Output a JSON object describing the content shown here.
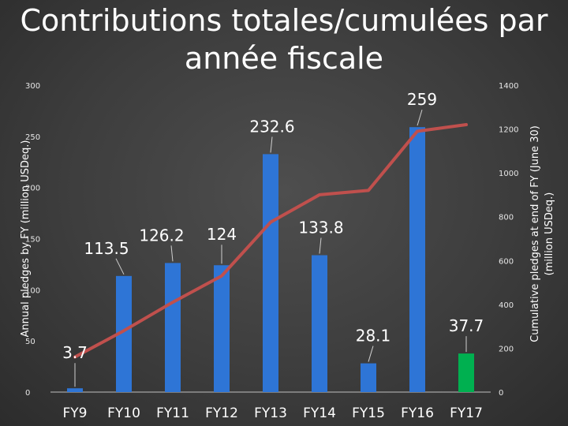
{
  "chart_data": {
    "type": "bar",
    "title": "Contributions totales/cumulées par année fiscale",
    "categories": [
      "FY9",
      "FY10",
      "FY11",
      "FY12",
      "FY13",
      "FY14",
      "FY15",
      "FY16",
      "FY17"
    ],
    "series": [
      {
        "type": "bar",
        "axis": "left",
        "values": [
          3.7,
          113.5,
          126.2,
          124,
          232.6,
          133.8,
          28.1,
          259,
          37.7
        ],
        "colors": [
          "#2e75d6",
          "#2e75d6",
          "#2e75d6",
          "#2e75d6",
          "#2e75d6",
          "#2e75d6",
          "#2e75d6",
          "#2e75d6",
          "#00b050"
        ],
        "data_labels": [
          "3.7",
          "113.5",
          "126.2",
          "124",
          "232.6",
          "133.8",
          "28.1",
          "259",
          "37.7"
        ]
      },
      {
        "type": "line",
        "axis": "right",
        "color": "#c0504d",
        "values": [
          160,
          280,
          410,
          530,
          775,
          900,
          920,
          1190,
          1220
        ]
      }
    ],
    "ylabel": "Annual pledges by FY (million USDeq.)",
    "y2label": "Cumulative pledges at end of FY (June 30) (million USDeq.)",
    "ylim": [
      0,
      300
    ],
    "y2lim": [
      0,
      1400
    ],
    "yticks": [
      "0",
      "50",
      "100",
      "150",
      "200",
      "250",
      "300"
    ],
    "y2ticks": [
      "0",
      "200",
      "400",
      "600",
      "800",
      "1000",
      "1200",
      "1400"
    ],
    "grid": false,
    "legend": "none"
  }
}
